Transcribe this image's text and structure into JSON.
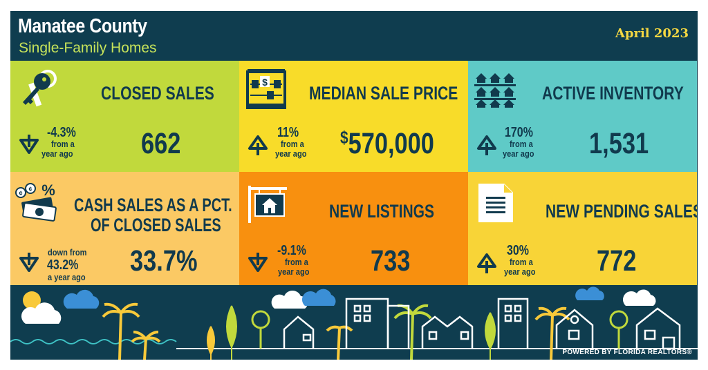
{
  "header": {
    "title": "Manatee County",
    "subtitle": "Single-Family Homes",
    "date": "April 2023"
  },
  "tiles": [
    {
      "label_line1": "CLOSED SALES",
      "label_line2": "",
      "value": "662",
      "change_value": "-4.3%",
      "change_text_line1": "from a",
      "change_text_line2": "year ago",
      "direction": "down",
      "icon": "keys-icon",
      "color": "#c1d93c"
    },
    {
      "label_line1": "MEDIAN SALE PRICE",
      "label_line2": "",
      "value_currency": "$",
      "value": "570,000",
      "change_value": "11%",
      "change_text_line1": "from a",
      "change_text_line2": "year ago",
      "direction": "up",
      "icon": "abacus-icon",
      "color": "#f8dc29"
    },
    {
      "label_line1": "ACTIVE INVENTORY",
      "label_line2": "",
      "value": "1,531",
      "change_value": "170%",
      "change_text_line1": "from a",
      "change_text_line2": "year ago",
      "direction": "up",
      "icon": "houses-grid-icon",
      "color": "#5fcac7"
    },
    {
      "label_line1": "CASH SALES AS A PCT.",
      "label_line2": "OF CLOSED SALES",
      "value": "33.7%",
      "change_prefix": "down from",
      "change_value": "43.2%",
      "change_text_line1": "a year ago",
      "change_text_line2": "",
      "direction": "down",
      "icon": "cash-icon",
      "color": "#fbc964"
    },
    {
      "label_line1": "NEW LISTINGS",
      "label_line2": "",
      "value": "733",
      "change_value": "-9.1%",
      "change_text_line1": "from a",
      "change_text_line2": "year ago",
      "direction": "down",
      "icon": "for-sale-sign-icon",
      "color": "#f8900f"
    },
    {
      "label_line1": "NEW PENDING SALES",
      "label_line2": "",
      "value": "772",
      "change_value": "30%",
      "change_text_line1": "from a",
      "change_text_line2": "year ago",
      "direction": "up",
      "icon": "document-icon",
      "color": "#f8d437"
    }
  ],
  "footer": {
    "powered_by": "POWERED BY FLORIDA REALTORS®"
  }
}
